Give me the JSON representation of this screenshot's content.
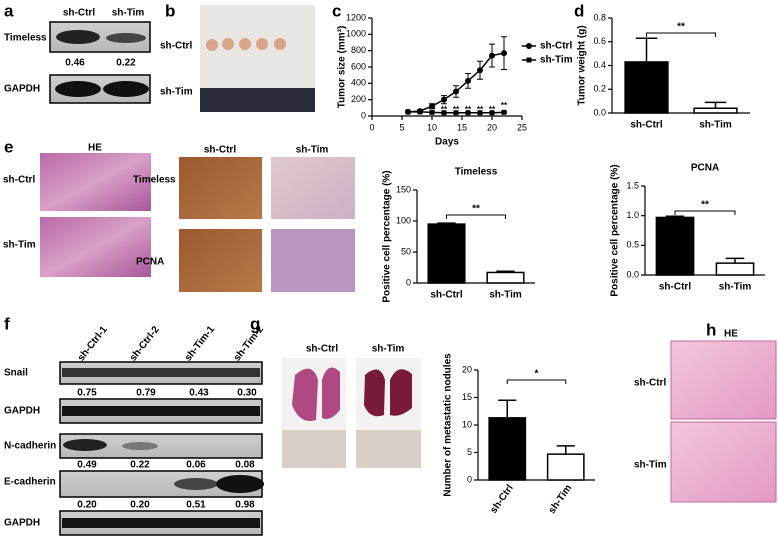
{
  "panel_labels": [
    "a",
    "b",
    "c",
    "d",
    "e",
    "f",
    "g",
    "h"
  ],
  "panel_a": {
    "lanes": [
      "sh-Ctrl",
      "sh-Tim"
    ],
    "rows": [
      {
        "name": "Timeless",
        "values": [
          "0.46",
          "0.22"
        ]
      },
      {
        "name": "GAPDH"
      }
    ]
  },
  "panel_b": {
    "rows": [
      "sh-Ctrl",
      "sh-Tim"
    ]
  },
  "panel_e": {
    "stain": "HE",
    "rows": [
      "sh-Ctrl",
      "sh-Tim"
    ],
    "ihc_columns": [
      "sh-Ctrl",
      "sh-Tim"
    ],
    "ihc_rows": [
      "Timeless",
      "PCNA"
    ]
  },
  "panel_f": {
    "lanes": [
      "sh-Ctrl-1",
      "sh-Ctrl-2",
      "sh-Tim-1",
      "sh-Tim-2"
    ],
    "rows": [
      {
        "name": "Snail",
        "values": [
          "0.75",
          "0.79",
          "0.43",
          "0.30"
        ]
      },
      {
        "name": "GAPDH"
      },
      {
        "name": "N-cadherin",
        "values": [
          "0.49",
          "0.22",
          "0.06",
          "0.08"
        ]
      },
      {
        "name": "E-cadherin",
        "values": [
          "0.20",
          "0.20",
          "0.51",
          "0.98"
        ]
      },
      {
        "name": "GAPDH"
      }
    ]
  },
  "panel_g": {
    "columns": [
      "sh-Ctrl",
      "sh-Tim"
    ]
  },
  "panel_h": {
    "stain": "HE",
    "rows": [
      "sh-Ctrl",
      "sh-Tim"
    ]
  },
  "chart_data": [
    {
      "type": "line",
      "xlabel": "Days",
      "ylabel": "Tumor size (mm³)",
      "x": [
        6,
        8,
        10,
        12,
        14,
        16,
        18,
        20,
        22
      ],
      "series": [
        {
          "name": "sh-Ctrl",
          "color": "#000000",
          "marker": "circle",
          "values": [
            50,
            60,
            120,
            200,
            300,
            430,
            560,
            740,
            770
          ],
          "errors": [
            10,
            15,
            30,
            50,
            70,
            90,
            110,
            140,
            200
          ]
        },
        {
          "name": "sh-Tim",
          "color": "#000000",
          "marker": "square",
          "values": [
            50,
            50,
            45,
            40,
            40,
            40,
            40,
            40,
            45
          ],
          "errors": [
            5,
            5,
            5,
            5,
            5,
            5,
            5,
            5,
            5
          ]
        }
      ],
      "significance": [
        null,
        null,
        "**",
        "**",
        "**",
        "**",
        "**",
        "**",
        "**"
      ],
      "xlim": [
        0,
        25
      ],
      "xticks": [
        0,
        5,
        10,
        15,
        20,
        25
      ],
      "ylim": [
        0,
        1200
      ],
      "yticks": [
        0,
        200,
        400,
        600,
        800,
        1000,
        1200
      ],
      "legend": "right"
    },
    {
      "type": "bar",
      "ylabel": "Tumor weight (g)",
      "categories": [
        "sh-Ctrl",
        "sh-Tim"
      ],
      "values": [
        0.43,
        0.04
      ],
      "errors": [
        0.2,
        0.05
      ],
      "colors": [
        "#000000",
        "#ffffff"
      ],
      "annotation": "**",
      "ylim": [
        0,
        0.8
      ],
      "yticks": [
        {
          "value": 0,
          "label": "0.0"
        },
        0.2,
        0.4,
        0.6,
        0.8
      ]
    },
    {
      "type": "bar",
      "title": "Timeless",
      "ylabel": "Positive cell percentage (%)",
      "categories": [
        "sh-Ctrl",
        "sh-Tim"
      ],
      "values": [
        95,
        17
      ],
      "errors": [
        1.5,
        2
      ],
      "colors": [
        "#000000",
        "#ffffff"
      ],
      "annotation": "**",
      "ylim": [
        0,
        150
      ],
      "yticks": [
        0,
        50,
        100,
        150
      ]
    },
    {
      "type": "bar",
      "title": "PCNA",
      "ylabel": "Positive cell percentage (%)",
      "categories": [
        "sh-Ctrl",
        "sh-Tim"
      ],
      "values": [
        0.97,
        0.2
      ],
      "errors": [
        0.02,
        0.08
      ],
      "colors": [
        "#000000",
        "#ffffff"
      ],
      "annotation": "**",
      "ylim": [
        0,
        1.5
      ],
      "yticks": [
        {
          "value": 0,
          "label": "0.0"
        },
        0.5,
        {
          "value": 1,
          "label": "1.0"
        },
        1.5
      ]
    },
    {
      "type": "bar",
      "ylabel": "Number of metastatic nodules",
      "categories": [
        "sh-Ctrl",
        "sh-Tim"
      ],
      "values": [
        11.3,
        4.7
      ],
      "errors": [
        3.2,
        1.5
      ],
      "colors": [
        "#000000",
        "#ffffff"
      ],
      "annotation": "*",
      "ylim": [
        0,
        20
      ],
      "yticks": [
        0,
        5,
        10,
        15,
        20
      ]
    }
  ]
}
